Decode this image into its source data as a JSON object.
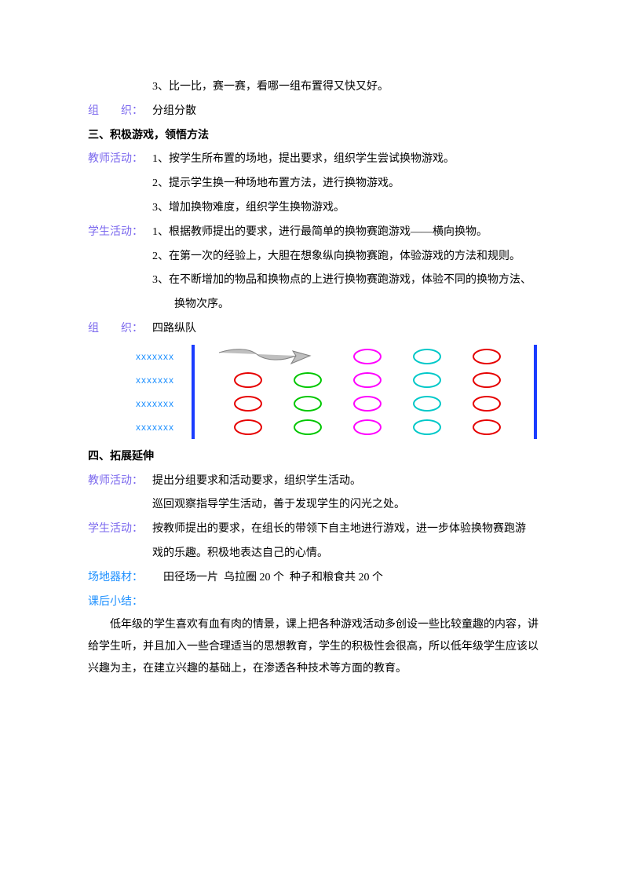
{
  "line1": "3、比一比，赛一赛，看哪一组布置得又快又好。",
  "org1_label": "组　　织：",
  "org1_text": "分组分散",
  "h3": "三、积极游戏，领悟方法",
  "teacher_label": "教师活动：",
  "t1_1": "1、按学生所布置的场地，提出要求，组织学生尝试换物游戏。",
  "t1_2": "2、提示学生换一种场地布置方法，进行换物游戏。",
  "t1_3": "3、增加换物难度，组织学生换物游戏。",
  "student_label": "学生活动：",
  "s1_1": "1、根据教师提出的要求，进行最简单的换物赛跑游戏——横向换物。",
  "s1_2": "2、在第一次的经验上，大胆在想象纵向换物赛跑，体验游戏的方法和规则。",
  "s1_3a": "3、在不断增加的物品和换物点的上进行换物赛跑游戏，体验不同的换物方法、",
  "s1_3b": "换物次序。",
  "org2_label": "组　　织：",
  "org2_text": "四路纵队",
  "diagram": {
    "x_label": "xxxxxxx",
    "rows": 4,
    "columns": [
      {
        "color": "#e60000"
      },
      {
        "color": "#00c800"
      },
      {
        "color": "#ff00ff"
      },
      {
        "color": "#00c8c8"
      },
      {
        "color": "#e60000"
      }
    ],
    "bar_color": "#1a3cff",
    "arrow": {
      "fill": "#bfbfbf",
      "stroke": "#808080"
    }
  },
  "h4": "四、拓展延伸",
  "t4_1": "提出分组要求和活动要求，组织学生活动。",
  "t4_2": "巡回观察指导学生活动，善于发现学生的闪光之处。",
  "s4_1a": "按教师提出的要求，在组长的带领下自主地进行游戏，进一步体验换物赛跑游",
  "s4_1b": "戏的乐趣。积极地表达自己的心情。",
  "equip_label": "场地器材：",
  "equip_text": "　田径场一片  乌拉圈 20 个  种子和粮食共 20 个",
  "summary_label": "课后小结：",
  "summary_text": "　　低年级的学生喜欢有血有肉的情景，课上把各种游戏活动多创设一些比较童趣的内容，讲给学生听，并且加入一些合理适当的思想教育，学生的积极性会很高，所以低年级学生应该以兴趣为主，在建立兴趣的基础上，在渗透各种技术等方面的教育。"
}
